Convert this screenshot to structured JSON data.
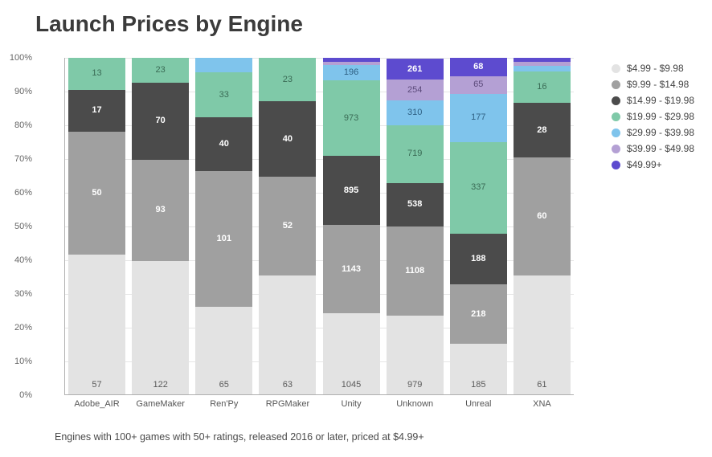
{
  "title": "Launch Prices by Engine",
  "caption": "Engines with 100+ games with 50+ ratings, released 2016 or later, priced at $4.99+",
  "chart": {
    "type": "stacked-bar-100pct",
    "background_color": "#ffffff",
    "grid_color": "#e6e6e6",
    "axis_color": "#b0b0b0",
    "title_fontsize": 28,
    "tick_fontsize": 11,
    "x_label_fontsize": 11,
    "value_label_fontsize": 11,
    "legend_fontsize": 12,
    "ylim": [
      0,
      100
    ],
    "ytick_step": 10,
    "ytick_suffix": "%",
    "categories": [
      "Adobe_AIR",
      "GameMaker",
      "Ren'Py",
      "RPGMaker",
      "Unity",
      "Unknown",
      "Unreal",
      "XNA"
    ],
    "series": [
      {
        "name": "$4.99 - $9.98",
        "color": "#e3e3e3",
        "text_color": "#5a5a5a",
        "text_weight": "400"
      },
      {
        "name": "$9.99 - $14.98",
        "color": "#a0a0a0",
        "text_color": "#ffffff",
        "text_weight": "600"
      },
      {
        "name": "$14.99 - $19.98",
        "color": "#4b4b4b",
        "text_color": "#ffffff",
        "text_weight": "600"
      },
      {
        "name": "$19.99 - $29.98",
        "color": "#7fc9a8",
        "text_color": "#3a6b55",
        "text_weight": "500"
      },
      {
        "name": "$29.99 - $39.98",
        "color": "#7fc4ec",
        "text_color": "#2e5f82",
        "text_weight": "500"
      },
      {
        "name": "$39.99 - $49.98",
        "color": "#b4a0d4",
        "text_color": "#5b4a7a",
        "text_weight": "500"
      },
      {
        "name": "$49.99+",
        "color": "#5d4bcf",
        "text_color": "#ffffff",
        "text_weight": "600"
      }
    ],
    "data": [
      {
        "engine": "Adobe_AIR",
        "values": [
          57,
          50,
          17,
          13,
          null,
          null,
          null
        ]
      },
      {
        "engine": "GameMaker",
        "values": [
          122,
          93,
          70,
          23,
          null,
          null,
          null
        ]
      },
      {
        "engine": "Ren'Py",
        "values": [
          65,
          101,
          40,
          33,
          null,
          null,
          null
        ]
      },
      {
        "engine": "RPGMaker",
        "values": [
          63,
          52,
          40,
          23,
          null,
          null,
          null
        ]
      },
      {
        "engine": "Unity",
        "values": [
          1045,
          1143,
          895,
          973,
          196,
          null,
          null
        ]
      },
      {
        "engine": "Unknown",
        "values": [
          979,
          1108,
          538,
          719,
          310,
          254,
          261
        ]
      },
      {
        "engine": "Unreal",
        "values": [
          185,
          218,
          188,
          337,
          177,
          65,
          68
        ]
      },
      {
        "engine": "XNA",
        "values": [
          61,
          60,
          28,
          16,
          null,
          null,
          null
        ]
      }
    ],
    "visible_percents": [
      [
        41.6,
        36.5,
        12.4,
        9.5,
        0,
        0,
        0
      ],
      [
        39.6,
        30.2,
        22.7,
        7.5,
        0,
        0,
        0
      ],
      [
        26.0,
        40.4,
        16.0,
        13.2,
        4.4,
        0,
        0
      ],
      [
        35.4,
        29.2,
        22.5,
        12.9,
        0,
        0,
        0
      ],
      [
        24.0,
        26.3,
        20.6,
        22.4,
        4.5,
        1.1,
        1.1
      ],
      [
        23.4,
        26.5,
        12.9,
        17.2,
        7.4,
        6.1,
        6.3
      ],
      [
        15.0,
        17.6,
        15.2,
        27.2,
        14.3,
        5.2,
        5.5
      ],
      [
        35.4,
        34.9,
        16.3,
        9.3,
        1.7,
        1.2,
        1.2
      ]
    ],
    "show_labels": [
      [
        true,
        true,
        true,
        true,
        false,
        false,
        false
      ],
      [
        true,
        true,
        true,
        true,
        false,
        false,
        false
      ],
      [
        true,
        true,
        true,
        true,
        false,
        false,
        false
      ],
      [
        true,
        true,
        true,
        true,
        false,
        false,
        false
      ],
      [
        true,
        true,
        true,
        true,
        true,
        false,
        false
      ],
      [
        true,
        true,
        true,
        true,
        true,
        true,
        true
      ],
      [
        true,
        true,
        true,
        true,
        true,
        true,
        true
      ],
      [
        true,
        true,
        true,
        true,
        false,
        false,
        false
      ]
    ]
  }
}
